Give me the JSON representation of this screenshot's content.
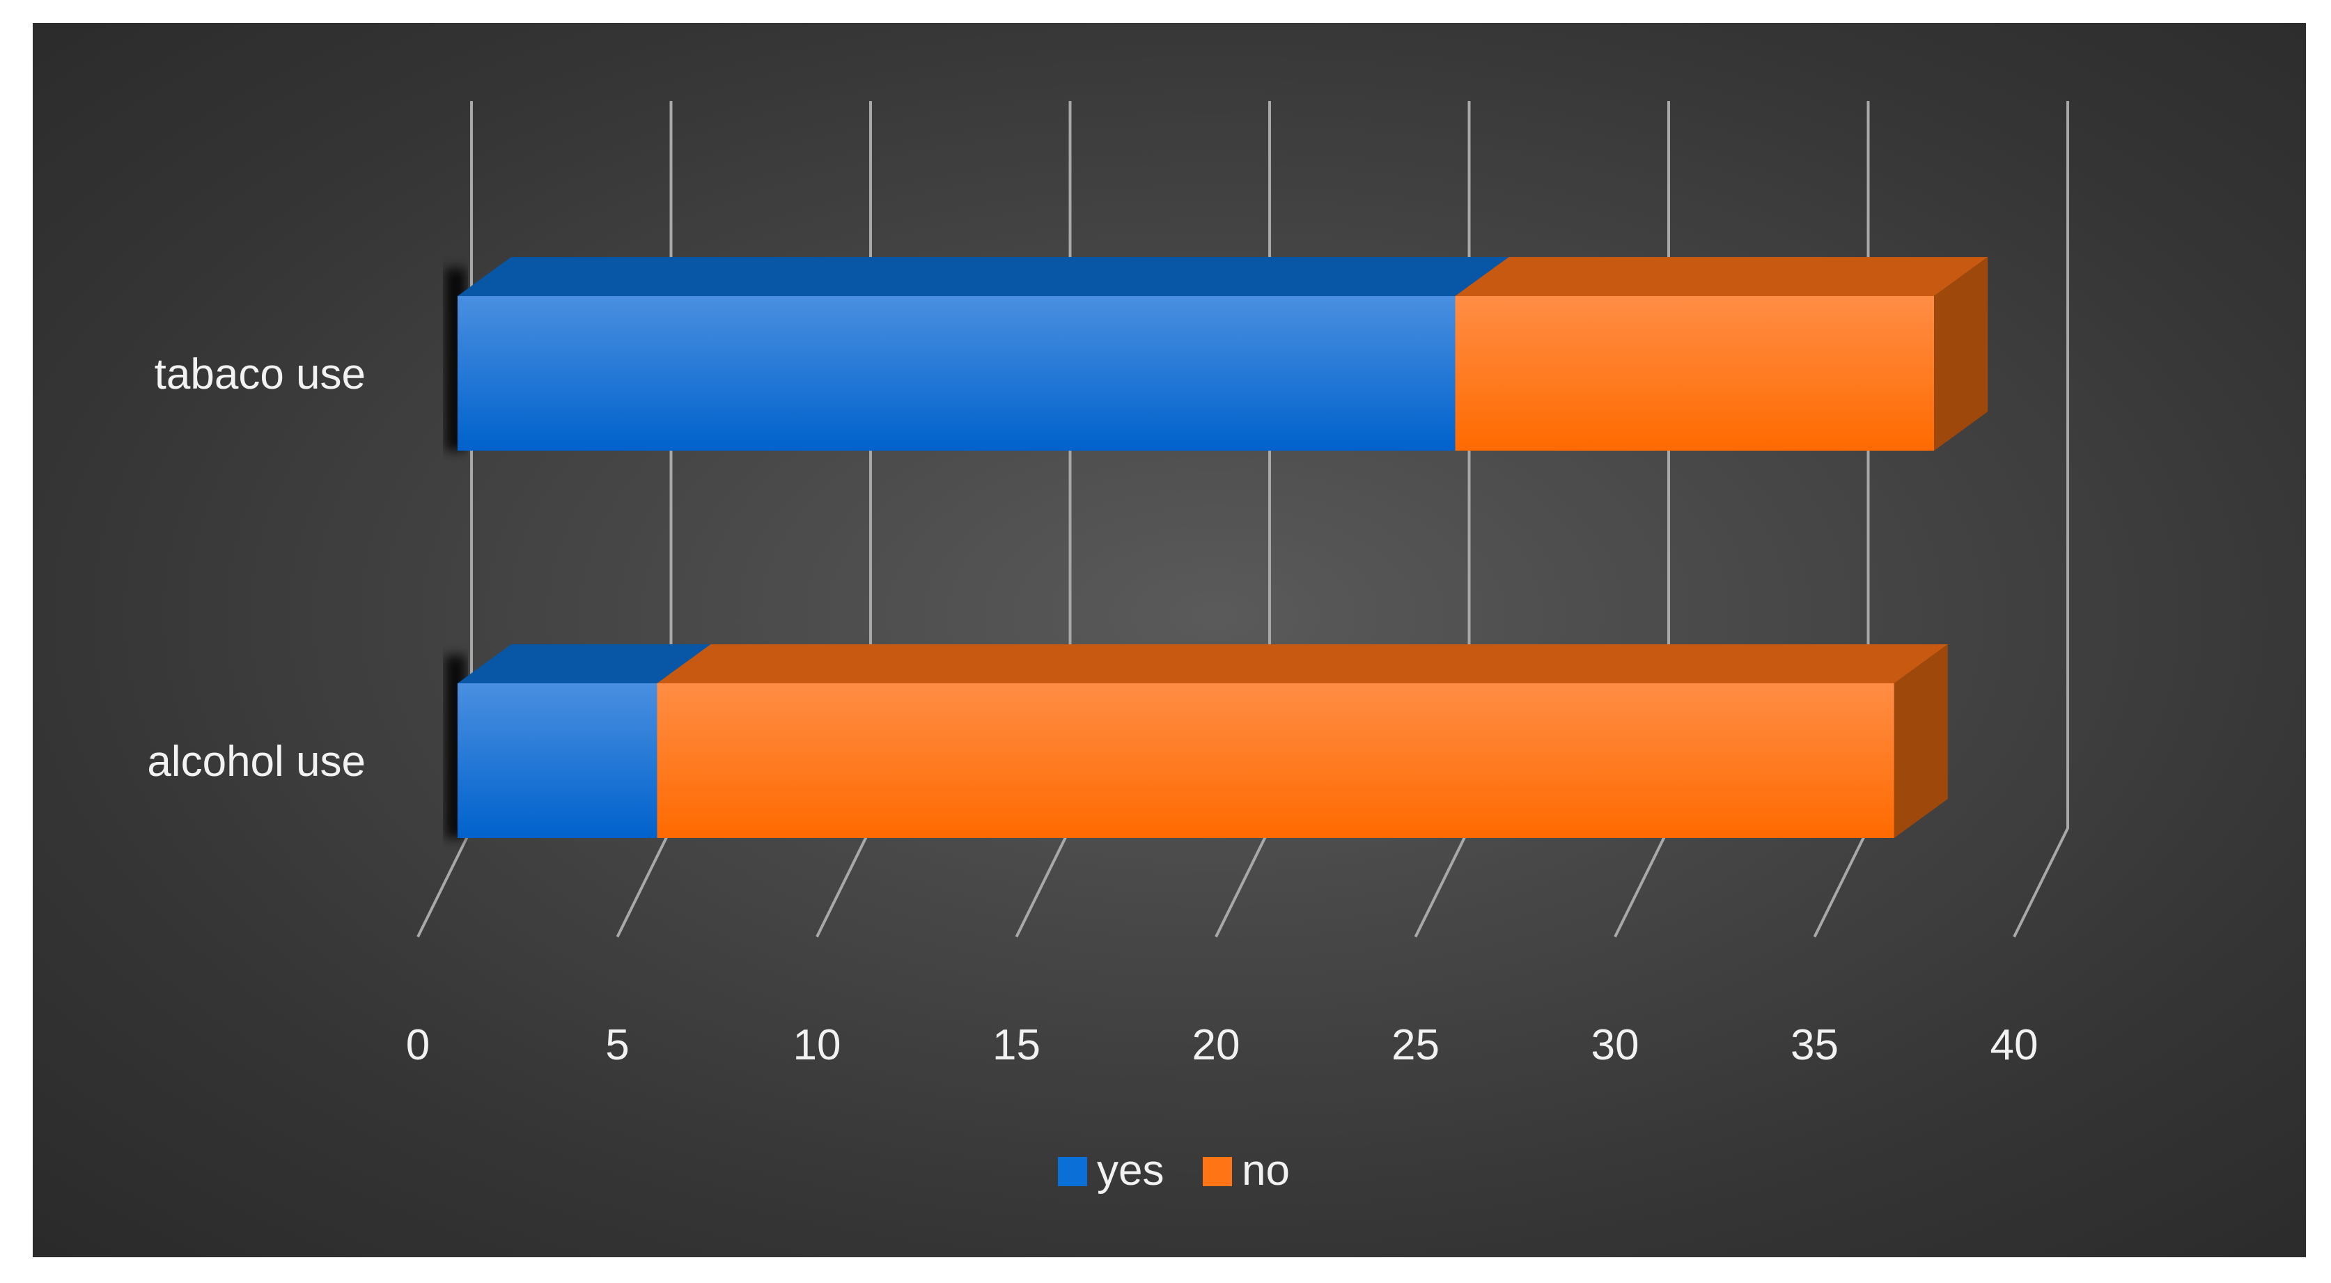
{
  "chart_data": {
    "type": "bar",
    "orientation": "horizontal",
    "stacked": true,
    "style": "3d",
    "categories": [
      "alcohol use",
      "tabaco use"
    ],
    "series": [
      {
        "name": "yes",
        "values": [
          5,
          25
        ],
        "color": "#0a6fd6"
      },
      {
        "name": "no",
        "values": [
          31,
          12
        ],
        "color": "#ff7414"
      }
    ],
    "xlim": [
      0,
      40
    ],
    "xticks": [
      "0",
      "5",
      "10",
      "15",
      "20",
      "25",
      "30",
      "35",
      "40"
    ],
    "grid": true,
    "legend_position": "bottom",
    "background": "#3c3c3c",
    "title": "",
    "xlabel": "",
    "ylabel": ""
  }
}
